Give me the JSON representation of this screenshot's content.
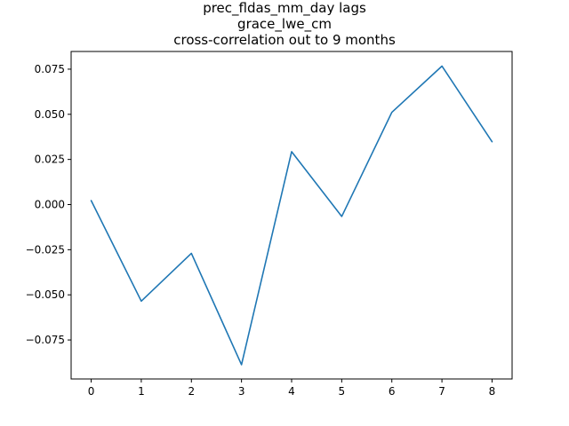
{
  "chart_data": {
    "type": "line",
    "title_lines": [
      "prec_fldas_mm_day lags",
      "grace_lwe_cm",
      "cross-correlation out to 9 months"
    ],
    "xlabel": "",
    "ylabel": "",
    "x": [
      0,
      1,
      2,
      3,
      4,
      5,
      6,
      7,
      8
    ],
    "series": [
      {
        "values": [
          0.0022,
          -0.0535,
          -0.027,
          -0.0887,
          0.0293,
          -0.0066,
          0.0511,
          0.0767,
          0.0348
        ],
        "color": "#1f77b4"
      }
    ],
    "xlim": [
      -0.4,
      8.4
    ],
    "ylim": [
      -0.0966,
      0.0848
    ],
    "xticks": [
      "0",
      "1",
      "2",
      "3",
      "4",
      "5",
      "6",
      "7",
      "8"
    ],
    "yticks": [
      "−0.075",
      "−0.050",
      "−0.025",
      "0.000",
      "0.025",
      "0.050",
      "0.075"
    ],
    "grid": false,
    "legend": "none"
  }
}
